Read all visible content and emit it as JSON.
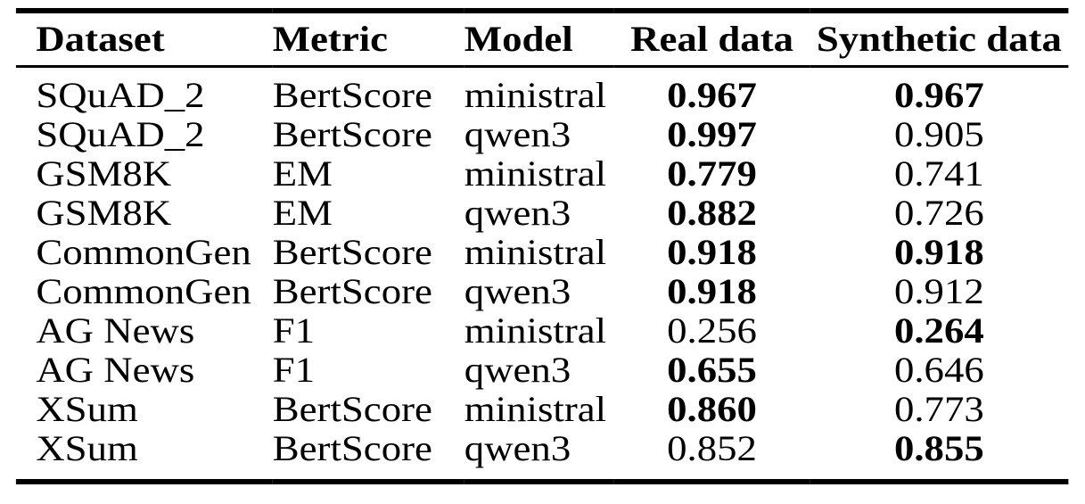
{
  "table": {
    "headers": [
      {
        "label": "Dataset"
      },
      {
        "label": "Metric"
      },
      {
        "label": "Model"
      },
      {
        "label": "Real data"
      },
      {
        "label": "Synthetic data"
      }
    ],
    "rows": [
      {
        "dataset": "SQuAD_2",
        "metric": "BertScore",
        "model": "ministral",
        "real": "0.967",
        "real_bold": true,
        "synthetic": "0.967",
        "synthetic_bold": true
      },
      {
        "dataset": "SQuAD_2",
        "metric": "BertScore",
        "model": "qwen3",
        "real": "0.997",
        "real_bold": true,
        "synthetic": "0.905",
        "synthetic_bold": false
      },
      {
        "dataset": "GSM8K",
        "metric": "EM",
        "model": "ministral",
        "real": "0.779",
        "real_bold": true,
        "synthetic": "0.741",
        "synthetic_bold": false
      },
      {
        "dataset": "GSM8K",
        "metric": "EM",
        "model": "qwen3",
        "real": "0.882",
        "real_bold": true,
        "synthetic": "0.726",
        "synthetic_bold": false
      },
      {
        "dataset": "CommonGen",
        "metric": "BertScore",
        "model": "ministral",
        "real": "0.918",
        "real_bold": true,
        "synthetic": "0.918",
        "synthetic_bold": true
      },
      {
        "dataset": "CommonGen",
        "metric": "BertScore",
        "model": "qwen3",
        "real": "0.918",
        "real_bold": true,
        "synthetic": "0.912",
        "synthetic_bold": false
      },
      {
        "dataset": "AG News",
        "metric": "F1",
        "model": "ministral",
        "real": "0.256",
        "real_bold": false,
        "synthetic": "0.264",
        "synthetic_bold": true
      },
      {
        "dataset": "AG News",
        "metric": "F1",
        "model": "qwen3",
        "real": "0.655",
        "real_bold": true,
        "synthetic": "0.646",
        "synthetic_bold": false
      },
      {
        "dataset": "XSum",
        "metric": "BertScore",
        "model": "ministral",
        "real": "0.860",
        "real_bold": true,
        "synthetic": "0.773",
        "synthetic_bold": false
      },
      {
        "dataset": "XSum",
        "metric": "BertScore",
        "model": "qwen3",
        "real": "0.852",
        "real_bold": false,
        "synthetic": "0.855",
        "synthetic_bold": true
      }
    ],
    "colors": {
      "text": "#000000",
      "background": "#ffffff",
      "rule": "#000000"
    }
  }
}
